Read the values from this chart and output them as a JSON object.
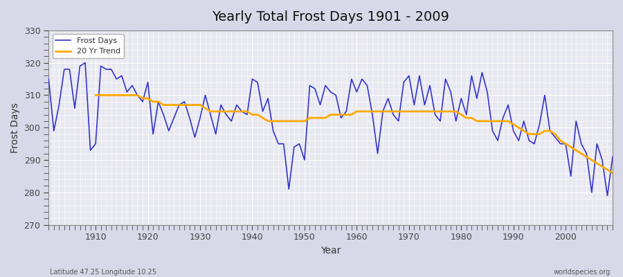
{
  "title": "Yearly Total Frost Days 1901 - 2009",
  "xlabel": "Year",
  "ylabel": "Frost Days",
  "footnote_left": "Latitude 47.25 Longitude 10.25",
  "footnote_right": "worldspecies.org",
  "legend_labels": [
    "Frost Days",
    "20 Yr Trend"
  ],
  "line_color": "#3333cc",
  "trend_color": "#ffaa00",
  "background_color": "#e8e8f0",
  "ylim": [
    270,
    330
  ],
  "xlim": [
    1901,
    2009
  ],
  "yticks": [
    270,
    280,
    290,
    300,
    310,
    320,
    330
  ],
  "xticks": [
    1910,
    1920,
    1930,
    1940,
    1950,
    1960,
    1970,
    1980,
    1990,
    2000
  ],
  "years": [
    1901,
    1902,
    1903,
    1904,
    1905,
    1906,
    1907,
    1908,
    1909,
    1910,
    1911,
    1912,
    1913,
    1914,
    1915,
    1916,
    1917,
    1918,
    1919,
    1920,
    1921,
    1922,
    1923,
    1924,
    1925,
    1926,
    1927,
    1928,
    1929,
    1930,
    1931,
    1932,
    1933,
    1934,
    1935,
    1936,
    1937,
    1938,
    1939,
    1940,
    1941,
    1942,
    1943,
    1944,
    1945,
    1946,
    1947,
    1948,
    1949,
    1950,
    1951,
    1952,
    1953,
    1954,
    1955,
    1956,
    1957,
    1958,
    1959,
    1960,
    1961,
    1962,
    1963,
    1964,
    1965,
    1966,
    1967,
    1968,
    1969,
    1970,
    1971,
    1972,
    1973,
    1974,
    1975,
    1976,
    1977,
    1978,
    1979,
    1980,
    1981,
    1982,
    1983,
    1984,
    1985,
    1986,
    1987,
    1988,
    1989,
    1990,
    1991,
    1992,
    1993,
    1994,
    1995,
    1996,
    1997,
    1998,
    1999,
    2000,
    2001,
    2002,
    2003,
    2004,
    2005,
    2006,
    2007,
    2008,
    2009
  ],
  "frost_days": [
    315,
    299,
    307,
    318,
    318,
    306,
    319,
    320,
    293,
    295,
    319,
    318,
    318,
    315,
    316,
    311,
    313,
    310,
    308,
    314,
    298,
    308,
    304,
    299,
    303,
    307,
    308,
    303,
    297,
    303,
    310,
    304,
    298,
    307,
    304,
    302,
    307,
    305,
    304,
    315,
    314,
    305,
    309,
    299,
    295,
    295,
    281,
    294,
    295,
    290,
    313,
    312,
    307,
    313,
    311,
    310,
    303,
    305,
    315,
    311,
    315,
    313,
    304,
    292,
    305,
    309,
    304,
    302,
    314,
    316,
    307,
    316,
    307,
    313,
    304,
    302,
    315,
    311,
    302,
    309,
    304,
    316,
    309,
    317,
    311,
    299,
    296,
    303,
    307,
    299,
    296,
    302,
    296,
    295,
    301,
    310,
    299,
    297,
    295,
    295,
    285,
    302,
    295,
    292,
    280,
    295,
    290,
    279,
    291
  ],
  "trend_years": [
    1910,
    1911,
    1912,
    1913,
    1914,
    1915,
    1916,
    1917,
    1918,
    1919,
    1920,
    1921,
    1922,
    1923,
    1924,
    1925,
    1926,
    1927,
    1928,
    1929,
    1930,
    1931,
    1932,
    1933,
    1934,
    1935,
    1936,
    1937,
    1938,
    1939,
    1940,
    1941,
    1942,
    1943,
    1944,
    1945,
    1946,
    1947,
    1948,
    1949,
    1950,
    1951,
    1952,
    1953,
    1954,
    1955,
    1956,
    1957,
    1958,
    1959,
    1960,
    1961,
    1962,
    1963,
    1964,
    1965,
    1966,
    1967,
    1968,
    1969,
    1970,
    1971,
    1972,
    1973,
    1974,
    1975,
    1976,
    1977,
    1978,
    1979,
    1980,
    1981,
    1982,
    1983,
    1984,
    1985,
    1986,
    1987,
    1988,
    1989,
    1990,
    1991,
    1992,
    1993,
    1994,
    1995,
    1996,
    1997,
    1998,
    1999,
    2000,
    2001,
    2002,
    2003,
    2004,
    2005,
    2006,
    2007,
    2008,
    2009
  ],
  "trend_values": [
    310,
    310,
    310,
    310,
    310,
    310,
    310,
    310,
    310,
    309,
    309,
    308,
    308,
    307,
    307,
    307,
    307,
    307,
    307,
    307,
    307,
    306,
    305,
    305,
    305,
    305,
    305,
    305,
    305,
    305,
    304,
    304,
    303,
    302,
    302,
    302,
    302,
    302,
    302,
    302,
    302,
    303,
    303,
    303,
    303,
    304,
    304,
    304,
    304,
    304,
    305,
    305,
    305,
    305,
    305,
    305,
    305,
    305,
    305,
    305,
    305,
    305,
    305,
    305,
    305,
    305,
    305,
    305,
    305,
    305,
    304,
    303,
    303,
    302,
    302,
    302,
    302,
    302,
    302,
    302,
    301,
    300,
    299,
    298,
    298,
    298,
    299,
    299,
    298,
    296,
    295,
    294,
    293,
    292,
    291,
    290,
    289,
    288,
    287,
    286
  ]
}
